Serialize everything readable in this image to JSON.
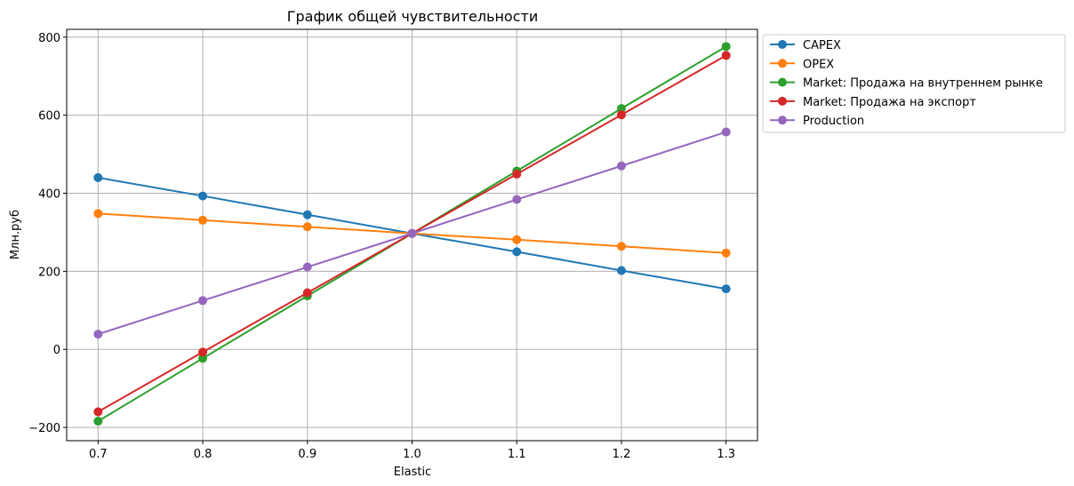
{
  "chart_data": {
    "type": "line",
    "title": "График общей чувствительности",
    "xlabel": "Elastic",
    "ylabel": "Млн.руб",
    "x": [
      0.7,
      0.8,
      0.9,
      1.0,
      1.1,
      1.2,
      1.3
    ],
    "x_tick_labels": [
      "0.7",
      "0.8",
      "0.9",
      "1.0",
      "1.1",
      "1.2",
      "1.3"
    ],
    "y_ticks": [
      -200,
      0,
      200,
      400,
      600,
      800
    ],
    "y_tick_labels": [
      "−200",
      "0",
      "200",
      "400",
      "600",
      "800"
    ],
    "xlim": [
      0.67,
      1.33
    ],
    "ylim": [
      -234,
      820
    ],
    "grid": true,
    "legend_position": "outside upper right",
    "series": [
      {
        "name": "CAPEX",
        "color": "#1f77b4",
        "values": [
          440,
          393,
          345,
          297,
          250,
          202,
          155
        ]
      },
      {
        "name": "OPEX",
        "color": "#ff7f0e",
        "values": [
          348,
          331,
          314,
          297,
          281,
          264,
          247
        ]
      },
      {
        "name": "Market: Продажа на внутреннем рынке",
        "color": "#2ca02c",
        "values": [
          -184,
          -23,
          137,
          297,
          457,
          617,
          776
        ]
      },
      {
        "name": "Market: Продажа на экспорт",
        "color": "#d62728",
        "values": [
          -160,
          -7,
          145,
          297,
          449,
          601,
          753
        ]
      },
      {
        "name": "Production",
        "color": "#9467bd",
        "values": [
          39,
          125,
          211,
          297,
          384,
          470,
          557
        ]
      }
    ]
  }
}
